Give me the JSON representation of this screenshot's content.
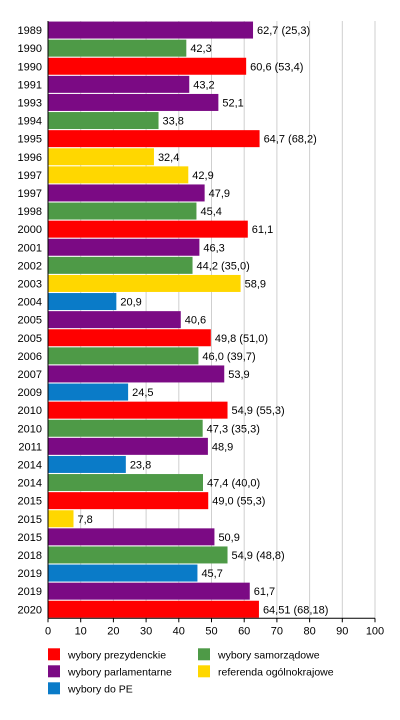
{
  "chart_data": {
    "type": "bar",
    "orientation": "horizontal",
    "xlim": [
      0,
      100
    ],
    "x_ticks": [
      0,
      10,
      20,
      30,
      40,
      50,
      60,
      70,
      80,
      90,
      100
    ],
    "grid": "vertical",
    "legend_placement": "bottom",
    "legend": [
      {
        "key": "prez",
        "label": "wybory prezydenckie",
        "color": "#ff0000"
      },
      {
        "key": "samo",
        "label": "wybory samorządowe",
        "color": "#4e9a47"
      },
      {
        "key": "parl",
        "label": "wybory parlamentarne",
        "color": "#7b0a84"
      },
      {
        "key": "ref",
        "label": "referenda ogólnokrajowe",
        "color": "#ffd700"
      },
      {
        "key": "pe",
        "label": "wybory do PE",
        "color": "#0a7bc8"
      }
    ],
    "bars": [
      {
        "year": "1989",
        "value": 62.7,
        "type": "parl",
        "label": "62,7 (25,3)"
      },
      {
        "year": "1990",
        "value": 42.3,
        "type": "samo",
        "label": "42,3"
      },
      {
        "year": "1990",
        "value": 60.6,
        "type": "prez",
        "label": "60,6 (53,4)"
      },
      {
        "year": "1991",
        "value": 43.2,
        "type": "parl",
        "label": "43,2"
      },
      {
        "year": "1993",
        "value": 52.1,
        "type": "parl",
        "label": "52,1"
      },
      {
        "year": "1994",
        "value": 33.8,
        "type": "samo",
        "label": "33,8"
      },
      {
        "year": "1995",
        "value": 64.7,
        "type": "prez",
        "label": "64,7 (68,2)"
      },
      {
        "year": "1996",
        "value": 32.4,
        "type": "ref",
        "label": "32,4"
      },
      {
        "year": "1997",
        "value": 42.9,
        "type": "ref",
        "label": "42,9"
      },
      {
        "year": "1997",
        "value": 47.9,
        "type": "parl",
        "label": "47,9"
      },
      {
        "year": "1998",
        "value": 45.4,
        "type": "samo",
        "label": "45,4"
      },
      {
        "year": "2000",
        "value": 61.1,
        "type": "prez",
        "label": "61,1"
      },
      {
        "year": "2001",
        "value": 46.3,
        "type": "parl",
        "label": "46,3"
      },
      {
        "year": "2002",
        "value": 44.2,
        "type": "samo",
        "label": "44,2 (35,0)"
      },
      {
        "year": "2003",
        "value": 58.9,
        "type": "ref",
        "label": "58,9"
      },
      {
        "year": "2004",
        "value": 20.9,
        "type": "pe",
        "label": "20,9"
      },
      {
        "year": "2005",
        "value": 40.6,
        "type": "parl",
        "label": "40,6"
      },
      {
        "year": "2005",
        "value": 49.8,
        "type": "prez",
        "label": "49,8 (51,0)"
      },
      {
        "year": "2006",
        "value": 46.0,
        "type": "samo",
        "label": "46,0 (39,7)"
      },
      {
        "year": "2007",
        "value": 53.9,
        "type": "parl",
        "label": "53,9"
      },
      {
        "year": "2009",
        "value": 24.5,
        "type": "pe",
        "label": "24,5"
      },
      {
        "year": "2010",
        "value": 54.9,
        "type": "prez",
        "label": "54,9 (55,3)"
      },
      {
        "year": "2010",
        "value": 47.3,
        "type": "samo",
        "label": "47,3 (35,3)"
      },
      {
        "year": "2011",
        "value": 48.9,
        "type": "parl",
        "label": "48,9"
      },
      {
        "year": "2014",
        "value": 23.8,
        "type": "pe",
        "label": "23,8"
      },
      {
        "year": "2014",
        "value": 47.4,
        "type": "samo",
        "label": "47,4 (40,0)"
      },
      {
        "year": "2015",
        "value": 49.0,
        "type": "prez",
        "label": "49,0 (55,3)"
      },
      {
        "year": "2015",
        "value": 7.8,
        "type": "ref",
        "label": "7,8"
      },
      {
        "year": "2015",
        "value": 50.9,
        "type": "parl",
        "label": "50,9"
      },
      {
        "year": "2018",
        "value": 54.9,
        "type": "samo",
        "label": "54,9 (48,8)"
      },
      {
        "year": "2019",
        "value": 45.7,
        "type": "pe",
        "label": "45,7"
      },
      {
        "year": "2019",
        "value": 61.7,
        "type": "parl",
        "label": "61,7"
      },
      {
        "year": "2020",
        "value": 64.51,
        "type": "prez",
        "label": "64,51 (68,18)"
      }
    ]
  }
}
